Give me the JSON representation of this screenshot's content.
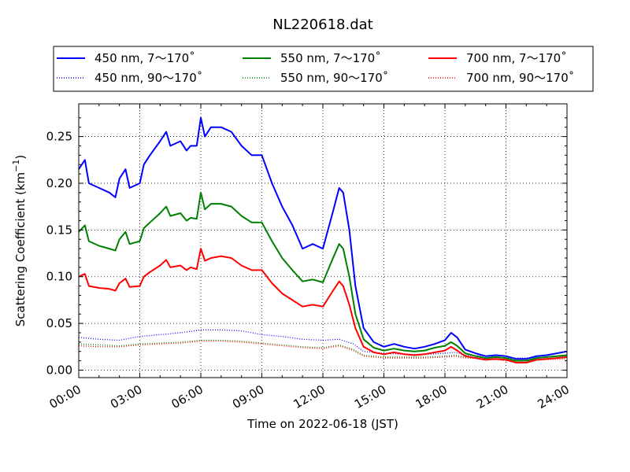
{
  "chart_data": {
    "type": "line",
    "title": "NL220618.dat",
    "xlabel": "Time on 2022-06-18 (JST)",
    "ylabel_main": "Scattering Coefficient (km",
    "ylabel_sup": "−1",
    "ylabel_close": ")",
    "x_unit": "hours",
    "xlim": [
      0,
      24
    ],
    "ylim": [
      -0.008,
      0.285
    ],
    "x_ticks": [
      0,
      3,
      6,
      9,
      12,
      15,
      18,
      21,
      24
    ],
    "x_tick_labels": [
      "00:00",
      "03:00",
      "06:00",
      "09:00",
      "12:00",
      "15:00",
      "18:00",
      "21:00",
      "24:00"
    ],
    "y_ticks": [
      0.0,
      0.05,
      0.1,
      0.15,
      0.2,
      0.25
    ],
    "y_tick_labels": [
      "0.00",
      "0.05",
      "0.10",
      "0.15",
      "0.20",
      "0.25"
    ],
    "grid": true,
    "legend_position": "top",
    "legend_columns": 3,
    "series": [
      {
        "name": "450 nm, 7～170˚",
        "color": "#0000ff",
        "style": "solid",
        "x": [
          0,
          0.3,
          0.5,
          1,
          1.5,
          1.8,
          2,
          2.3,
          2.5,
          3,
          3.2,
          3.5,
          4,
          4.3,
          4.5,
          5,
          5.3,
          5.5,
          5.8,
          6,
          6.2,
          6.5,
          7,
          7.5,
          8,
          8.5,
          9,
          9.5,
          10,
          10.5,
          11,
          11.5,
          12,
          12.5,
          12.8,
          13,
          13.3,
          13.6,
          14,
          14.5,
          15,
          15.5,
          16,
          16.5,
          17,
          17.5,
          18,
          18.3,
          18.6,
          19,
          19.5,
          20,
          20.5,
          21,
          21.5,
          22,
          22.5,
          23,
          23.5,
          24
        ],
        "y": [
          0.215,
          0.225,
          0.2,
          0.195,
          0.19,
          0.185,
          0.205,
          0.215,
          0.195,
          0.2,
          0.22,
          0.23,
          0.245,
          0.255,
          0.24,
          0.245,
          0.235,
          0.24,
          0.24,
          0.27,
          0.25,
          0.26,
          0.26,
          0.255,
          0.24,
          0.23,
          0.23,
          0.2,
          0.175,
          0.155,
          0.13,
          0.135,
          0.13,
          0.17,
          0.195,
          0.19,
          0.15,
          0.09,
          0.045,
          0.03,
          0.025,
          0.028,
          0.025,
          0.023,
          0.025,
          0.028,
          0.032,
          0.04,
          0.035,
          0.022,
          0.018,
          0.015,
          0.016,
          0.015,
          0.012,
          0.012,
          0.015,
          0.016,
          0.018,
          0.02
        ]
      },
      {
        "name": "450 nm, 90～170˚",
        "color": "#0000ff",
        "style": "dotted",
        "x": [
          0,
          1,
          2,
          3,
          4,
          5,
          6,
          7,
          8,
          9,
          10,
          11,
          12,
          12.8,
          13.5,
          14,
          15,
          16,
          17,
          18,
          18.5,
          19,
          20,
          21,
          22,
          23,
          24
        ],
        "y": [
          0.035,
          0.033,
          0.032,
          0.036,
          0.038,
          0.04,
          0.043,
          0.043,
          0.042,
          0.038,
          0.036,
          0.033,
          0.032,
          0.033,
          0.028,
          0.02,
          0.018,
          0.017,
          0.017,
          0.018,
          0.019,
          0.016,
          0.015,
          0.013,
          0.013,
          0.014,
          0.015
        ]
      },
      {
        "name": "550 nm, 7～170˚",
        "color": "#008000",
        "style": "solid",
        "x": [
          0,
          0.3,
          0.5,
          1,
          1.5,
          1.8,
          2,
          2.3,
          2.5,
          3,
          3.2,
          3.5,
          4,
          4.3,
          4.5,
          5,
          5.3,
          5.5,
          5.8,
          6,
          6.2,
          6.5,
          7,
          7.5,
          8,
          8.5,
          9,
          9.5,
          10,
          10.5,
          11,
          11.5,
          12,
          12.5,
          12.8,
          13,
          13.3,
          13.6,
          14,
          14.5,
          15,
          15.5,
          16,
          16.5,
          17,
          17.5,
          18,
          18.3,
          18.6,
          19,
          19.5,
          20,
          20.5,
          21,
          21.5,
          22,
          22.5,
          23,
          23.5,
          24
        ],
        "y": [
          0.148,
          0.155,
          0.138,
          0.133,
          0.13,
          0.128,
          0.14,
          0.148,
          0.135,
          0.138,
          0.152,
          0.158,
          0.168,
          0.175,
          0.165,
          0.168,
          0.16,
          0.163,
          0.162,
          0.19,
          0.172,
          0.178,
          0.178,
          0.175,
          0.165,
          0.158,
          0.158,
          0.138,
          0.12,
          0.107,
          0.095,
          0.097,
          0.094,
          0.12,
          0.135,
          0.13,
          0.1,
          0.06,
          0.033,
          0.024,
          0.021,
          0.023,
          0.021,
          0.02,
          0.021,
          0.024,
          0.026,
          0.03,
          0.026,
          0.018,
          0.015,
          0.013,
          0.014,
          0.013,
          0.01,
          0.01,
          0.013,
          0.014,
          0.015,
          0.016
        ]
      },
      {
        "name": "550 nm, 90～170˚",
        "color": "#008000",
        "style": "dotted",
        "x": [
          0,
          1,
          2,
          3,
          4,
          5,
          6,
          7,
          8,
          9,
          10,
          11,
          12,
          12.8,
          13.5,
          14,
          15,
          16,
          17,
          18,
          18.5,
          19,
          20,
          21,
          22,
          23,
          24
        ],
        "y": [
          0.028,
          0.027,
          0.026,
          0.028,
          0.029,
          0.03,
          0.032,
          0.032,
          0.031,
          0.029,
          0.027,
          0.025,
          0.024,
          0.027,
          0.022,
          0.016,
          0.014,
          0.014,
          0.014,
          0.015,
          0.016,
          0.014,
          0.013,
          0.011,
          0.011,
          0.012,
          0.013
        ]
      },
      {
        "name": "700 nm, 7～170˚",
        "color": "#ff0000",
        "style": "solid",
        "x": [
          0,
          0.3,
          0.5,
          1,
          1.5,
          1.8,
          2,
          2.3,
          2.5,
          3,
          3.2,
          3.5,
          4,
          4.3,
          4.5,
          5,
          5.3,
          5.5,
          5.8,
          6,
          6.2,
          6.5,
          7,
          7.5,
          8,
          8.5,
          9,
          9.5,
          10,
          10.5,
          11,
          11.5,
          12,
          12.5,
          12.8,
          13,
          13.3,
          13.6,
          14,
          14.5,
          15,
          15.5,
          16,
          16.5,
          17,
          17.5,
          18,
          18.3,
          18.6,
          19,
          19.5,
          20,
          20.5,
          21,
          21.5,
          22,
          22.5,
          23,
          23.5,
          24
        ],
        "y": [
          0.1,
          0.103,
          0.09,
          0.088,
          0.087,
          0.085,
          0.093,
          0.098,
          0.089,
          0.09,
          0.1,
          0.105,
          0.112,
          0.118,
          0.11,
          0.112,
          0.107,
          0.11,
          0.108,
          0.13,
          0.117,
          0.12,
          0.122,
          0.12,
          0.112,
          0.107,
          0.107,
          0.093,
          0.082,
          0.075,
          0.068,
          0.07,
          0.068,
          0.085,
          0.095,
          0.09,
          0.07,
          0.045,
          0.025,
          0.019,
          0.017,
          0.019,
          0.017,
          0.016,
          0.017,
          0.019,
          0.021,
          0.025,
          0.021,
          0.015,
          0.013,
          0.011,
          0.012,
          0.011,
          0.008,
          0.008,
          0.011,
          0.012,
          0.013,
          0.014
        ]
      },
      {
        "name": "700 nm, 90～170˚",
        "color": "#ff0000",
        "style": "dotted",
        "x": [
          0,
          1,
          2,
          3,
          4,
          5,
          6,
          7,
          8,
          9,
          10,
          11,
          12,
          12.8,
          13.5,
          14,
          15,
          16,
          17,
          18,
          18.5,
          19,
          20,
          21,
          22,
          23,
          24
        ],
        "y": [
          0.026,
          0.025,
          0.025,
          0.027,
          0.028,
          0.029,
          0.031,
          0.031,
          0.03,
          0.028,
          0.026,
          0.024,
          0.023,
          0.026,
          0.021,
          0.015,
          0.013,
          0.013,
          0.013,
          0.014,
          0.015,
          0.013,
          0.012,
          0.01,
          0.01,
          0.011,
          0.012
        ]
      }
    ]
  }
}
